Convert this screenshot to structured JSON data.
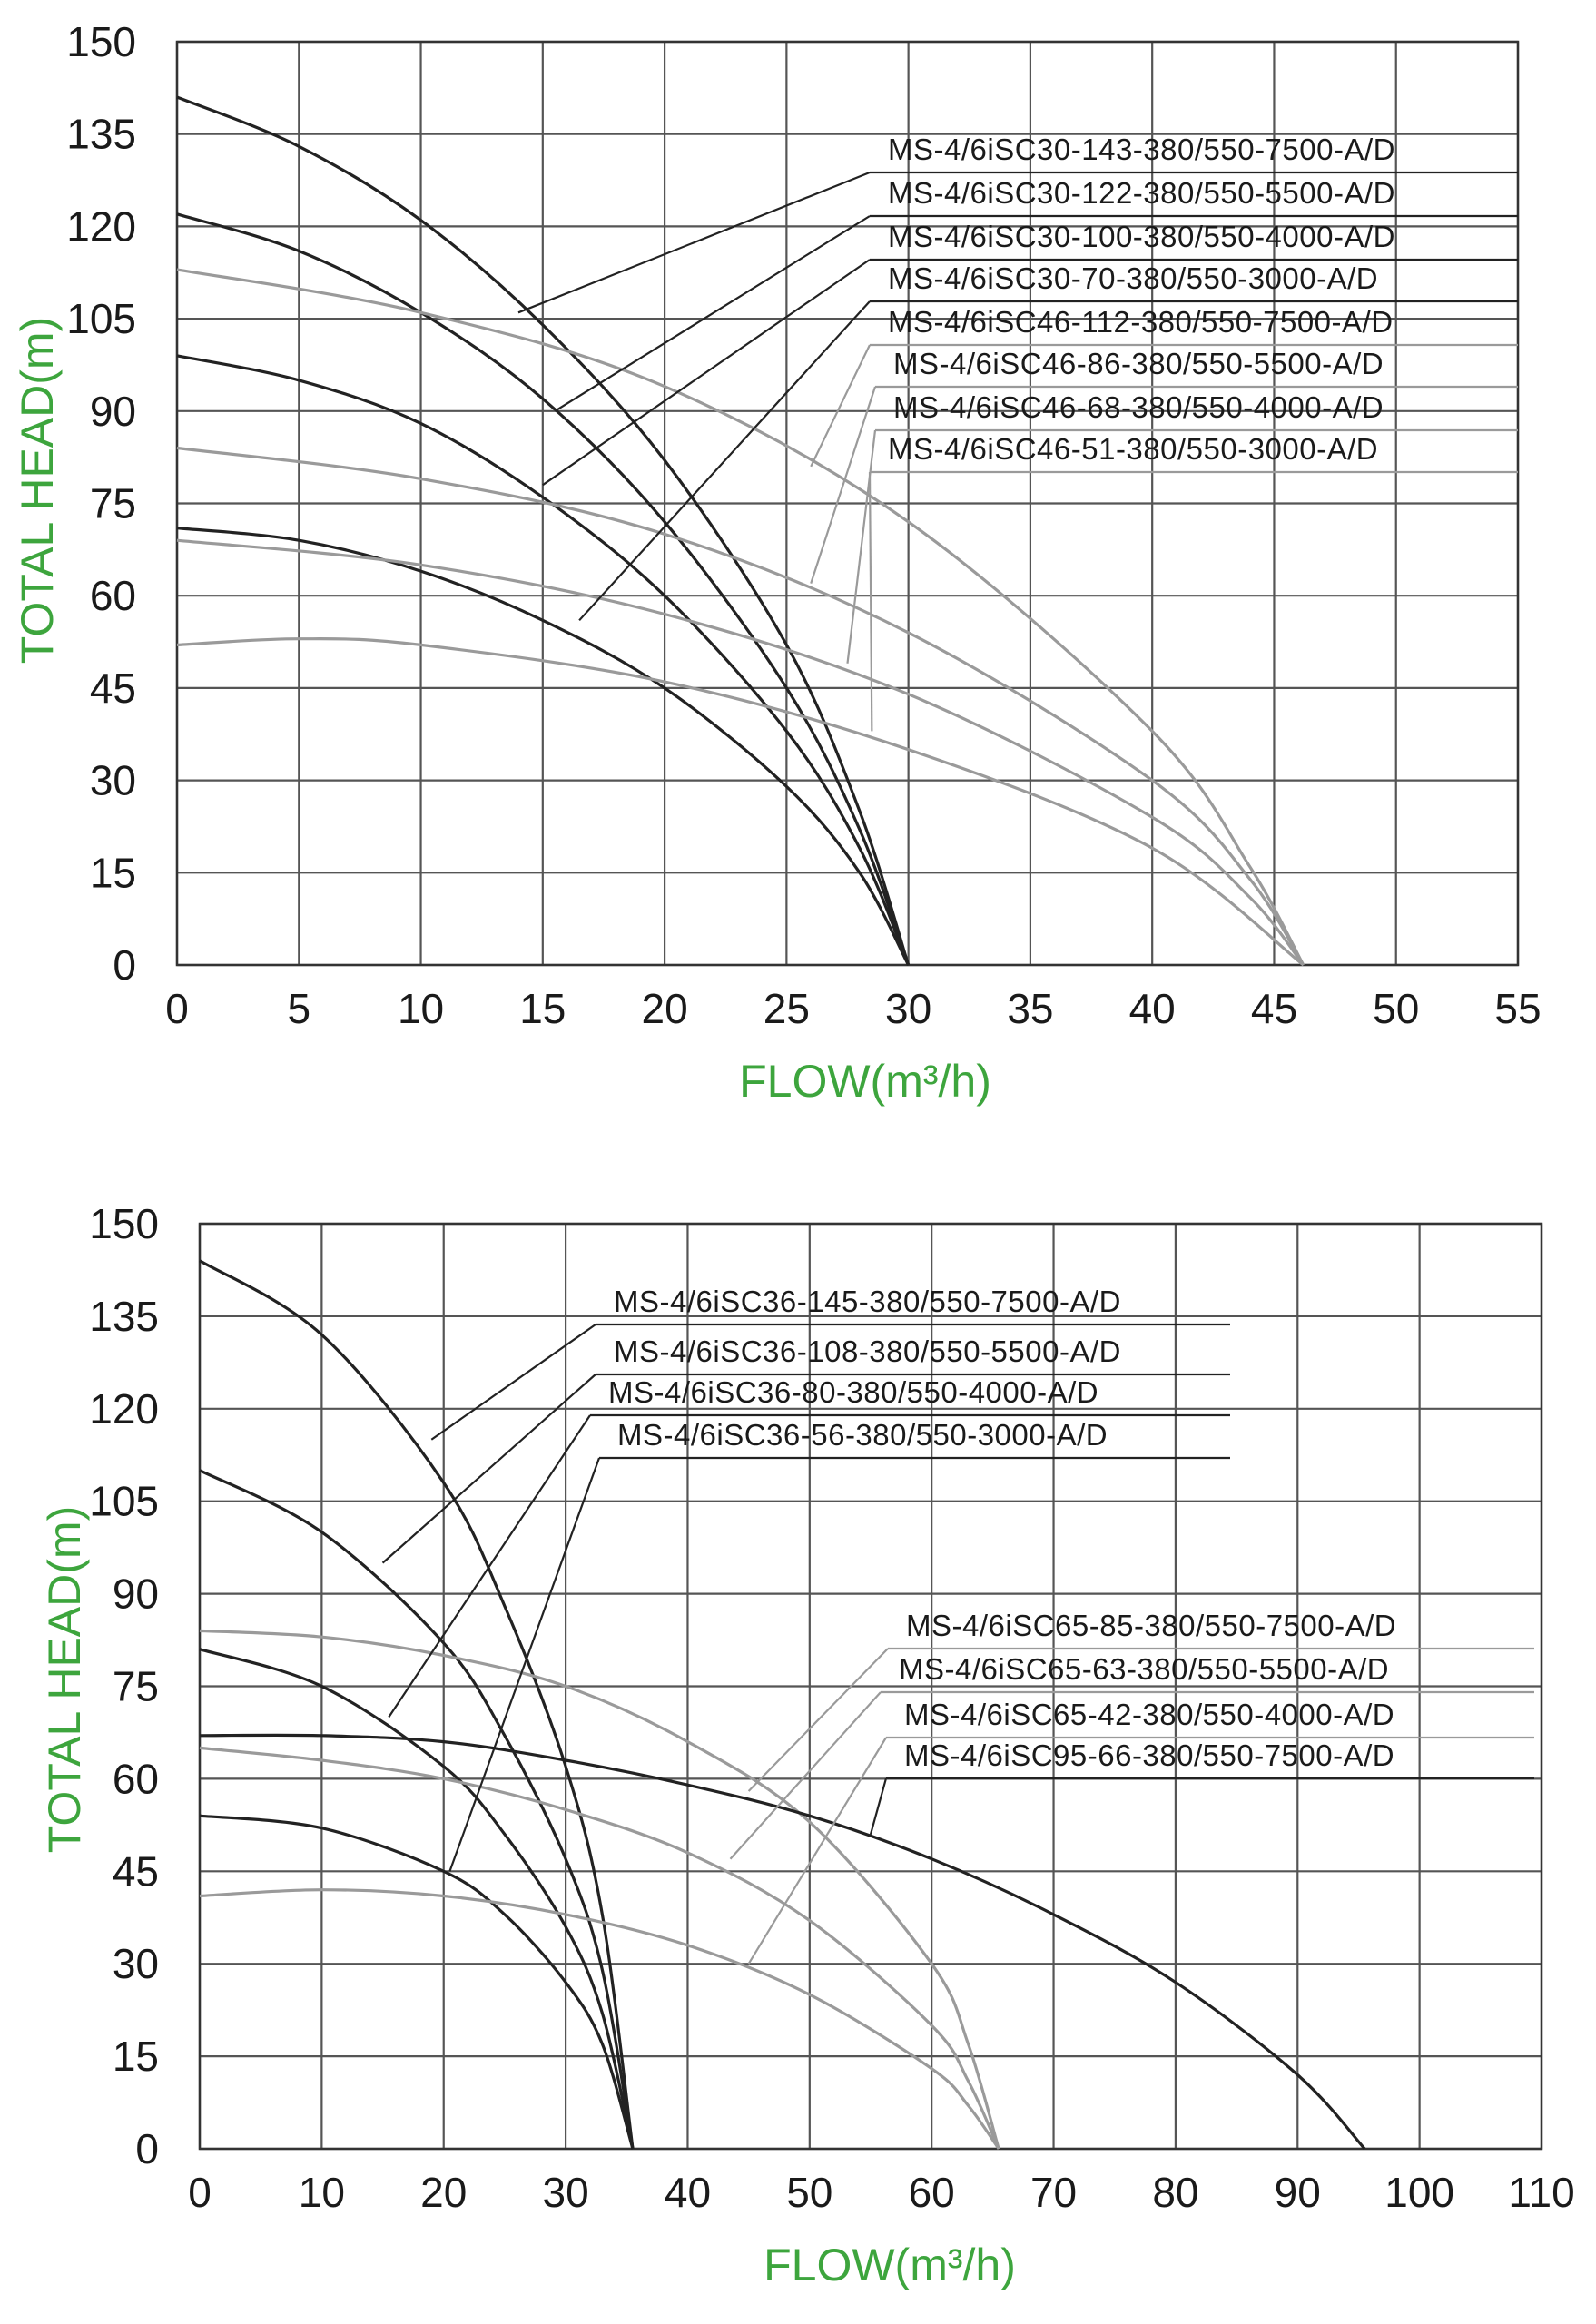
{
  "chart_data": [
    {
      "type": "line",
      "xlabel": "FLOW(m³/h)",
      "ylabel": "TOTAL HEAD(m)",
      "xlim": [
        0,
        55
      ],
      "ylim": [
        0,
        150
      ],
      "xticks": [
        0,
        5,
        10,
        15,
        20,
        25,
        30,
        35,
        40,
        45,
        50,
        55
      ],
      "yticks": [
        0,
        15,
        30,
        45,
        60,
        75,
        90,
        105,
        120,
        135,
        150
      ],
      "grid": true,
      "series": [
        {
          "name": "MS-4/6iSC30-143-380/550-7500-A/D",
          "color": "#222222",
          "x": [
            0,
            5,
            10,
            15,
            20,
            25,
            28,
            30
          ],
          "y": [
            141,
            133,
            121,
            104,
            82,
            52,
            25,
            0
          ]
        },
        {
          "name": "MS-4/6iSC30-122-380/550-5500-A/D",
          "color": "#222222",
          "x": [
            0,
            5,
            10,
            15,
            20,
            25,
            28,
            30
          ],
          "y": [
            122,
            116,
            106,
            92,
            72,
            45,
            22,
            0
          ]
        },
        {
          "name": "MS-4/6iSC30-100-380/550-4000-A/D",
          "color": "#222222",
          "x": [
            0,
            5,
            10,
            15,
            20,
            25,
            28,
            30
          ],
          "y": [
            99,
            95,
            88,
            76,
            60,
            38,
            19,
            0
          ]
        },
        {
          "name": "MS-4/6iSC30-70-380/550-3000-A/D",
          "color": "#222222",
          "x": [
            0,
            5,
            10,
            15,
            20,
            25,
            28,
            30
          ],
          "y": [
            71,
            69,
            64,
            56,
            45,
            29,
            15,
            0
          ]
        },
        {
          "name": "MS-4/6iSC46-112-380/550-7500-A/D",
          "color": "#9a9a9a",
          "x": [
            0,
            10,
            20,
            30,
            40,
            44,
            46.2
          ],
          "y": [
            113,
            106,
            94,
            72,
            38,
            16,
            0
          ]
        },
        {
          "name": "MS-4/6iSC46-86-380/550-5500-A/D",
          "color": "#9a9a9a",
          "x": [
            0,
            10,
            20,
            30,
            40,
            44,
            46.2
          ],
          "y": [
            84,
            79,
            70,
            54,
            30,
            14,
            0
          ]
        },
        {
          "name": "MS-4/6iSC46-68-380/550-4000-A/D",
          "color": "#9a9a9a",
          "x": [
            0,
            10,
            20,
            30,
            40,
            44,
            46.2
          ],
          "y": [
            69,
            65,
            57,
            44,
            24,
            11,
            0
          ]
        },
        {
          "name": "MS-4/6iSC46-51-380/550-3000-A/D",
          "color": "#9a9a9a",
          "x": [
            0,
            5,
            10,
            20,
            30,
            40,
            46.2
          ],
          "y": [
            52,
            53,
            52,
            46,
            35,
            19,
            0
          ]
        }
      ]
    },
    {
      "type": "line",
      "xlabel": "FLOW(m³/h)",
      "ylabel": "TOTAL HEAD(m)",
      "xlim": [
        0,
        110
      ],
      "ylim": [
        0,
        150
      ],
      "xticks": [
        0,
        10,
        20,
        30,
        40,
        50,
        60,
        70,
        80,
        90,
        100,
        110
      ],
      "yticks": [
        0,
        15,
        30,
        45,
        60,
        75,
        90,
        105,
        120,
        135,
        150
      ],
      "grid": true,
      "series": [
        {
          "name": "MS-4/6iSC36-145-380/550-7500-A/D",
          "color": "#222222",
          "x": [
            0,
            10,
            20,
            25,
            30,
            33,
            35.5
          ],
          "y": [
            144,
            132,
            108,
            88,
            62,
            38,
            0
          ]
        },
        {
          "name": "MS-4/6iSC36-108-380/550-5500-A/D",
          "color": "#222222",
          "x": [
            0,
            10,
            20,
            25,
            30,
            33,
            35.5
          ],
          "y": [
            110,
            100,
            82,
            67,
            47,
            29,
            0
          ]
        },
        {
          "name": "MS-4/6iSC36-80-380/550-4000-A/D",
          "color": "#222222",
          "x": [
            0,
            10,
            20,
            25,
            30,
            33,
            35.5
          ],
          "y": [
            81,
            75,
            62,
            51,
            36,
            22,
            0
          ]
        },
        {
          "name": "MS-4/6iSC36-56-380/550-3000-A/D",
          "color": "#222222",
          "x": [
            0,
            10,
            20,
            25,
            30,
            33,
            35.5
          ],
          "y": [
            54,
            52,
            45,
            38,
            27,
            17,
            0
          ]
        },
        {
          "name": "MS-4/6iSC65-85-380/550-7500-A/D",
          "color": "#9a9a9a",
          "x": [
            0,
            10,
            20,
            30,
            40,
            50,
            60,
            63,
            65.5
          ],
          "y": [
            84,
            83,
            80,
            75,
            66,
            53,
            30,
            17,
            0
          ]
        },
        {
          "name": "MS-4/6iSC65-63-380/550-5500-A/D",
          "color": "#9a9a9a",
          "x": [
            0,
            10,
            20,
            30,
            40,
            50,
            60,
            63,
            65.5
          ],
          "y": [
            65,
            63,
            60,
            55,
            48,
            37,
            20,
            11,
            0
          ]
        },
        {
          "name": "MS-4/6iSC65-42-380/550-4000-A/D",
          "color": "#9a9a9a",
          "x": [
            0,
            10,
            20,
            30,
            40,
            50,
            60,
            63,
            65.5
          ],
          "y": [
            41,
            42,
            41,
            38,
            33,
            25,
            13,
            7,
            0
          ]
        },
        {
          "name": "MS-4/6iSC95-66-380/550-7500-A/D",
          "color": "#222222",
          "x": [
            0,
            10,
            20,
            30,
            40,
            50,
            60,
            70,
            80,
            90,
            95.5
          ],
          "y": [
            67,
            67,
            66,
            63,
            59,
            54,
            47,
            38,
            27,
            12,
            0
          ]
        }
      ]
    }
  ]
}
